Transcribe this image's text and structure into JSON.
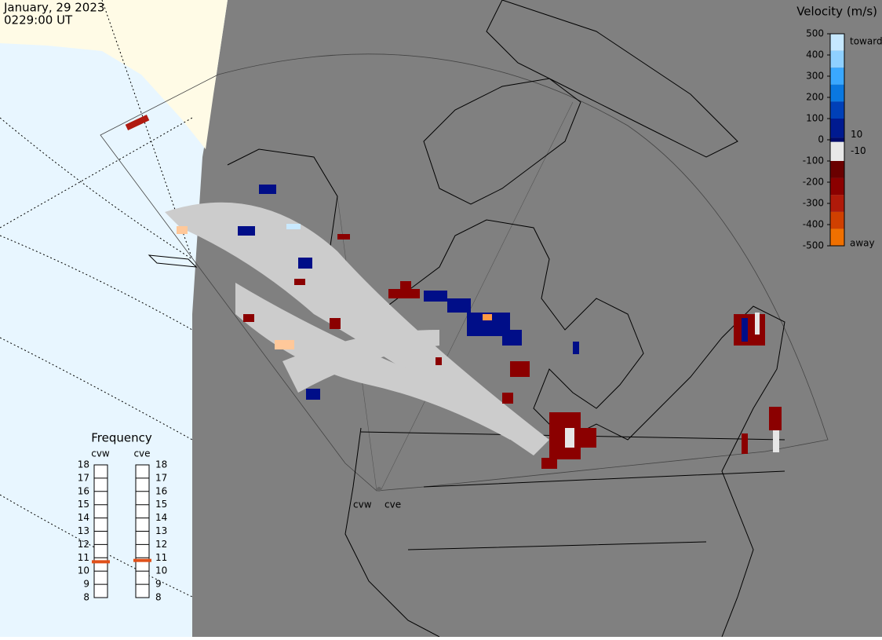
{
  "header": {
    "date": "January, 29 2023",
    "time": "0229:00 UT"
  },
  "velocity_legend": {
    "title": "Velocity (m/s)",
    "ticks": [
      500,
      400,
      300,
      200,
      100,
      0,
      -100,
      -200,
      -300,
      -400,
      -500
    ],
    "inner_ticks": [
      10,
      -10
    ],
    "range": [
      -500,
      500
    ],
    "toward": "toward",
    "away": "away"
  },
  "frequency": {
    "title": "Frequency",
    "range": [
      8,
      18
    ],
    "ticks": [
      8,
      9,
      10,
      11,
      12,
      13,
      14,
      15,
      16,
      17,
      18
    ],
    "radars": [
      {
        "name": "cvw",
        "value": 10.7
      },
      {
        "name": "cve",
        "value": 10.8
      }
    ]
  },
  "sites": [
    "cvw",
    "cve"
  ]
}
